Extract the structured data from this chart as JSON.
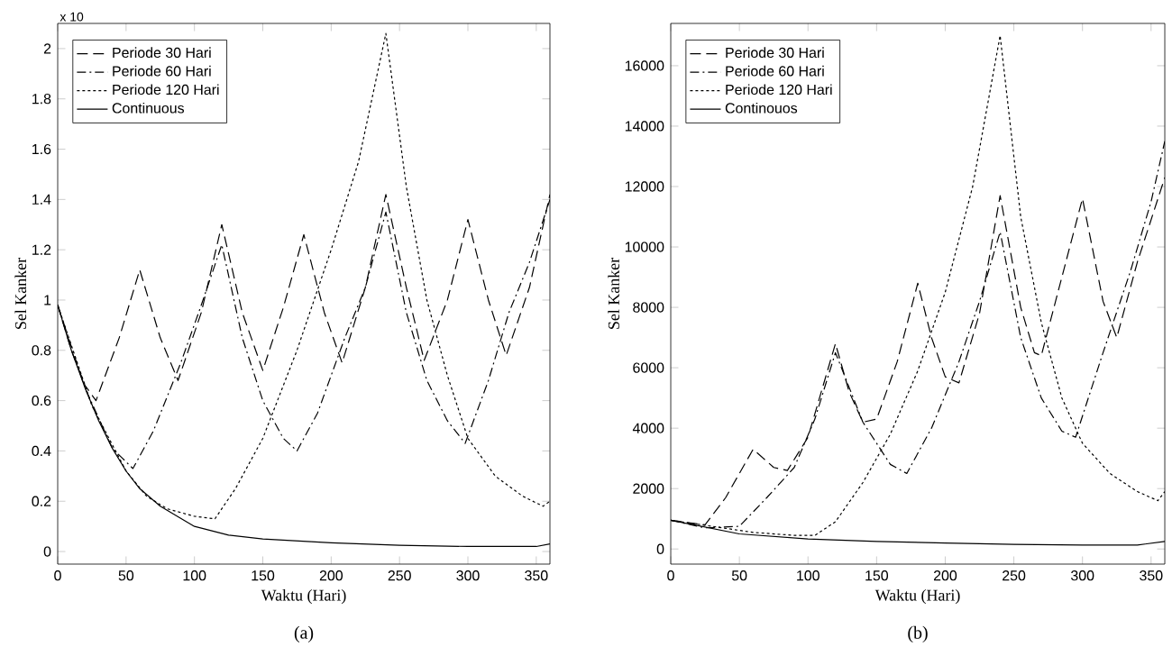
{
  "chart_data": [
    {
      "type": "line",
      "xlabel": "Waktu (Hari)",
      "ylabel": "Sel Kanker",
      "annotations": [
        "x 10",
        "(a)"
      ],
      "xlim": [
        0,
        360
      ],
      "ylim": [
        -0.05,
        2.1
      ],
      "xticks": [
        0,
        50,
        100,
        150,
        200,
        250,
        300,
        350
      ],
      "yticks": [
        0,
        0.2,
        0.4,
        0.6,
        0.8,
        1,
        1.2,
        1.4,
        1.6,
        1.8,
        2
      ],
      "legend": "top left",
      "grid": false,
      "series": [
        {
          "name": "Periode 30 Hari",
          "color": "#000000",
          "line_style": "dashed",
          "x": [
            0,
            10,
            20,
            28,
            45,
            60,
            75,
            88,
            105,
            120,
            135,
            150,
            165,
            180,
            195,
            208,
            225,
            240,
            255,
            268,
            285,
            300,
            315,
            328,
            345,
            360
          ],
          "values": [
            0.98,
            0.8,
            0.66,
            0.6,
            0.85,
            1.12,
            0.85,
            0.68,
            0.95,
            1.3,
            0.95,
            0.72,
            0.97,
            1.26,
            0.95,
            0.75,
            1.05,
            1.42,
            1.05,
            0.76,
            1.0,
            1.32,
            1.0,
            0.78,
            1.05,
            1.42
          ]
        },
        {
          "name": "Periode 60 Hari",
          "color": "#000000",
          "line_style": "dashdot",
          "x": [
            0,
            20,
            40,
            55,
            70,
            90,
            105,
            120,
            135,
            150,
            165,
            175,
            190,
            210,
            225,
            240,
            255,
            270,
            285,
            298,
            315,
            330,
            345,
            360
          ],
          "values": [
            0.98,
            0.65,
            0.41,
            0.33,
            0.48,
            0.75,
            0.98,
            1.22,
            0.85,
            0.6,
            0.45,
            0.4,
            0.55,
            0.85,
            1.05,
            1.35,
            0.95,
            0.68,
            0.52,
            0.43,
            0.68,
            0.95,
            1.15,
            1.4
          ]
        },
        {
          "name": "Periode 120 Hari",
          "color": "#000000",
          "line_style": "dotted",
          "x": [
            0,
            25,
            50,
            65,
            80,
            100,
            115,
            130,
            150,
            175,
            200,
            220,
            240,
            255,
            270,
            285,
            300,
            320,
            340,
            355,
            360
          ],
          "values": [
            0.98,
            0.58,
            0.32,
            0.22,
            0.17,
            0.14,
            0.13,
            0.25,
            0.45,
            0.8,
            1.2,
            1.55,
            2.06,
            1.45,
            1.0,
            0.7,
            0.45,
            0.3,
            0.22,
            0.18,
            0.2
          ]
        },
        {
          "name": "Continuous",
          "color": "#000000",
          "line_style": "solid",
          "x": [
            0,
            10,
            20,
            30,
            40,
            50,
            60,
            75,
            100,
            125,
            150,
            200,
            250,
            300,
            350,
            360
          ],
          "values": [
            0.98,
            0.8,
            0.65,
            0.52,
            0.41,
            0.32,
            0.25,
            0.18,
            0.1,
            0.065,
            0.05,
            0.035,
            0.025,
            0.02,
            0.02,
            0.03
          ]
        }
      ]
    },
    {
      "type": "line",
      "xlabel": "Waktu (Hari)",
      "ylabel": "Sel Kanker",
      "annotations": [
        "(b)"
      ],
      "xlim": [
        0,
        360
      ],
      "ylim": [
        -500,
        17400
      ],
      "xticks": [
        0,
        50,
        100,
        150,
        200,
        250,
        300,
        350
      ],
      "yticks": [
        0,
        2000,
        4000,
        6000,
        8000,
        10000,
        12000,
        14000,
        16000
      ],
      "legend": "top left",
      "grid": false,
      "series": [
        {
          "name": "Periode 30 Hari",
          "color": "#000000",
          "line_style": "dashed",
          "x": [
            0,
            25,
            40,
            60,
            75,
            85,
            100,
            120,
            130,
            140,
            150,
            165,
            180,
            190,
            200,
            210,
            225,
            240,
            255,
            265,
            270,
            285,
            300,
            315,
            325,
            340,
            360
          ],
          "values": [
            950,
            800,
            1700,
            3300,
            2700,
            2600,
            3700,
            6800,
            5200,
            4200,
            4300,
            6200,
            8800,
            7000,
            5700,
            5500,
            7800,
            11700,
            8000,
            6500,
            6400,
            9000,
            11600,
            8200,
            7000,
            9500,
            12300
          ]
        },
        {
          "name": "Periode 60 Hari",
          "color": "#000000",
          "line_style": "dashdot",
          "x": [
            0,
            25,
            50,
            70,
            90,
            105,
            120,
            140,
            160,
            172,
            190,
            210,
            225,
            240,
            255,
            270,
            285,
            295,
            315,
            335,
            350,
            360
          ],
          "values": [
            950,
            700,
            750,
            1700,
            2700,
            4300,
            6500,
            4200,
            2800,
            2500,
            4000,
            6200,
            8200,
            10500,
            7000,
            5000,
            3900,
            3700,
            6500,
            9200,
            11500,
            13500
          ]
        },
        {
          "name": "Periode 120 Hari",
          "color": "#000000",
          "line_style": "dotted",
          "x": [
            0,
            30,
            60,
            90,
            105,
            120,
            140,
            160,
            180,
            200,
            220,
            240,
            255,
            270,
            285,
            300,
            320,
            340,
            355,
            360
          ],
          "values": [
            950,
            750,
            550,
            450,
            450,
            900,
            2200,
            3800,
            5900,
            8500,
            12000,
            17000,
            11000,
            7500,
            5000,
            3500,
            2500,
            1900,
            1600,
            1900
          ]
        },
        {
          "name": "Continouos",
          "color": "#000000",
          "line_style": "solid",
          "x": [
            0,
            50,
            100,
            150,
            200,
            250,
            300,
            340,
            360
          ],
          "values": [
            950,
            500,
            330,
            250,
            200,
            150,
            130,
            130,
            250
          ]
        }
      ]
    }
  ]
}
